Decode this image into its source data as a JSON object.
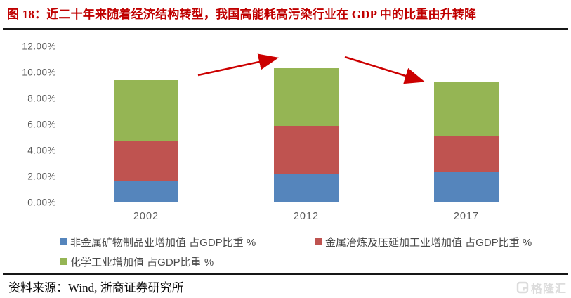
{
  "figure": {
    "title": "图 18：近二十年来随着经济结构转型，我国高能耗高污染行业在 GDP 中的比重由升转降",
    "source": "资料来源：Wind, 浙商证券研究所",
    "watermark": "格隆汇"
  },
  "colors": {
    "title_red": "#c00000",
    "arrow_red": "#cc0000",
    "gridline": "#d9d9d9",
    "axis_text": "#595959",
    "rule": "#161616",
    "watermark_gray": "#dcdcdc"
  },
  "chart_data": {
    "type": "bar",
    "stacked": true,
    "title": "图 18：近二十年来随着经济结构转型，我国高能耗高污染行业在 GDP 中的比重由升转降",
    "categories": [
      "2002",
      "2012",
      "2017"
    ],
    "series": [
      {
        "name": "非金属矿物制品业增加值 占GDP比重 %",
        "color": "#5585bc",
        "values": [
          1.6,
          2.2,
          2.3
        ]
      },
      {
        "name": "金属冶炼及压延加工业增加值 占GDP比重 %",
        "color": "#bf5350",
        "values": [
          3.1,
          3.7,
          2.8
        ]
      },
      {
        "name": "化学工业增加值 占GDP比重 %",
        "color": "#95b554",
        "values": [
          4.7,
          4.4,
          4.2
        ]
      }
    ],
    "totals": [
      9.4,
      10.3,
      9.3
    ],
    "xlabel": "",
    "ylabel": "",
    "ylim": [
      0,
      12
    ],
    "ytick_step": 2,
    "ytick_labels": [
      "0.00%",
      "2.00%",
      "4.00%",
      "6.00%",
      "8.00%",
      "10.00%",
      "12.00%"
    ],
    "grid": true,
    "legend_position": "bottom",
    "annotations": [
      "red arrow rising from 2002 bar top toward 2012 bar top",
      "red arrow falling from 2012 bar top toward 2017 bar top"
    ]
  }
}
